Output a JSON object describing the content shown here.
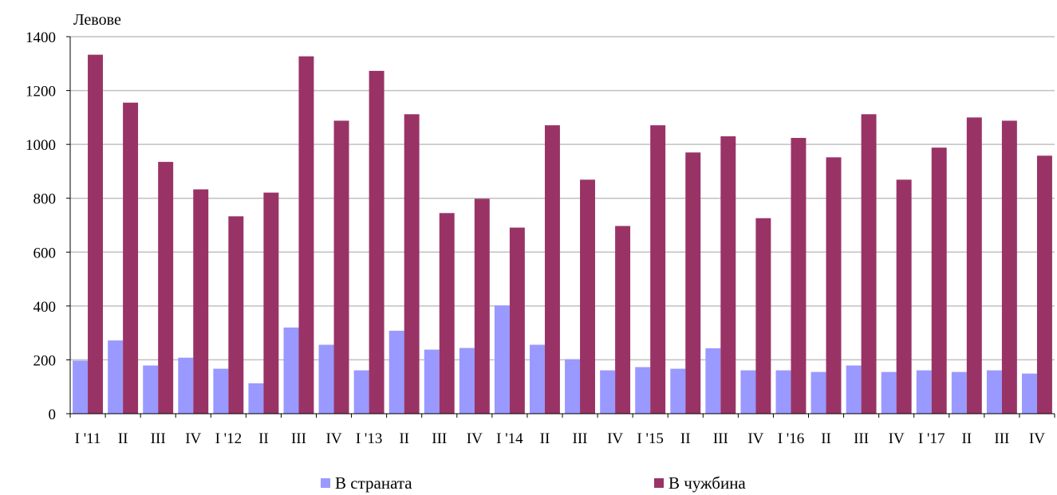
{
  "chart_data": {
    "type": "bar",
    "ylabel": "Левове",
    "ylim": [
      0,
      1400
    ],
    "yticks": [
      0,
      200,
      400,
      600,
      800,
      1000,
      1200,
      1400
    ],
    "grid": true,
    "legend_position": "bottom",
    "categories": [
      "I '11",
      "II",
      "III",
      "IV",
      "I '12",
      "II",
      "III",
      "IV",
      "I '13",
      "II",
      "III",
      "IV",
      "I '14",
      "II",
      "III",
      "IV",
      "I '15",
      "II",
      "III",
      "IV",
      "I '16",
      "II",
      "III",
      "IV",
      "I '17",
      "II",
      "III",
      "IV"
    ],
    "series": [
      {
        "name": "В страната",
        "color": "#9999ff",
        "values": [
          197,
          272,
          179,
          208,
          167,
          113,
          320,
          256,
          161,
          308,
          238,
          244,
          402,
          256,
          202,
          161,
          173,
          167,
          243,
          161,
          161,
          155,
          179,
          155,
          161,
          155,
          161,
          149
        ]
      },
      {
        "name": "В чужбина",
        "color": "#993366",
        "values": [
          1333,
          1155,
          935,
          833,
          733,
          821,
          1327,
          1088,
          1273,
          1112,
          745,
          798,
          691,
          1071,
          869,
          697,
          1071,
          970,
          1030,
          726,
          1024,
          952,
          1112,
          869,
          988,
          1100,
          1088,
          958
        ]
      }
    ]
  }
}
